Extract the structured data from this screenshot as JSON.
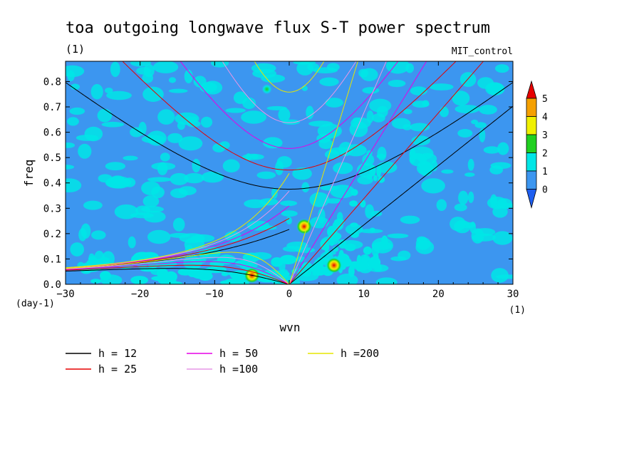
{
  "chart_data": {
    "type": "heatmap",
    "title": "toa outgoing longwave flux S-T power spectrum",
    "subtitle_left": "(1)",
    "subtitle_right": "MIT_control",
    "xlabel": "wvn",
    "ylabel": "freq",
    "x_unit": "(1)",
    "y_unit": "(day-1)",
    "xlim": [
      -30,
      30
    ],
    "ylim": [
      0,
      0.88
    ],
    "x_ticks": [
      -30,
      -20,
      -10,
      0,
      10,
      20,
      30
    ],
    "y_ticks": [
      0.0,
      0.1,
      0.2,
      0.3,
      0.4,
      0.5,
      0.6,
      0.7,
      0.8
    ],
    "x_tick_labels": [
      "−30",
      "−20",
      "−10",
      "0",
      "10",
      "20",
      "30"
    ],
    "y_tick_labels": [
      "0.0",
      "0.1",
      "0.2",
      "0.3",
      "0.4",
      "0.5",
      "0.6",
      "0.7",
      "0.8"
    ],
    "colorbar": {
      "levels": [
        0,
        1,
        2,
        3,
        4,
        5
      ],
      "colors": [
        "#1e5ef0",
        "#3c96f0",
        "#00e6e6",
        "#20d020",
        "#f0f000",
        "#f5a000",
        "#e60000"
      ]
    },
    "background_color": "#3c96f0",
    "patch_color": "#00e6e6",
    "hotspots": [
      {
        "x": -5,
        "y": 0.035,
        "peak": 5
      },
      {
        "x": 2,
        "y": 0.228,
        "peak": 5
      },
      {
        "x": 6,
        "y": 0.075,
        "peak": 5
      },
      {
        "x": -3,
        "y": 0.77,
        "peak": 2
      }
    ],
    "dispersion_curves": [
      {
        "label": "h = 12",
        "h": 12,
        "color": "#000000"
      },
      {
        "label": "h = 25",
        "h": 25,
        "color": "#e60000"
      },
      {
        "label": "h = 50",
        "h": 50,
        "color": "#e600e6"
      },
      {
        "label": "h =100",
        "h": 100,
        "color": "#e696e6"
      },
      {
        "label": "h =200",
        "h": 200,
        "color": "#e6e600"
      }
    ]
  }
}
